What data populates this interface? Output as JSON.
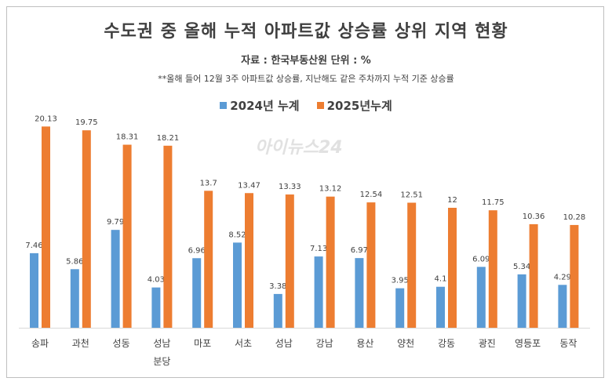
{
  "chart_data": {
    "type": "bar",
    "title": "수도권 중 올해 누적 아파트값 상승률 상위 지역 현황",
    "subtitle": "자료 : 한국부동산원  단위 : %",
    "note": "**올해 들어 12월 3주 아파트값  상승률, 지난해도 같은 주차까지 누적 기준 상승률",
    "categories": [
      "송파",
      "과천",
      "성동",
      "성남\n분당",
      "마포",
      "서초",
      "성남",
      "강남",
      "용산",
      "양천",
      "강동",
      "광진",
      "영등포",
      "동작"
    ],
    "series": [
      {
        "name": "2024년 누계",
        "color": "#5B9BD5",
        "values": [
          7.46,
          5.86,
          9.79,
          4.03,
          6.96,
          8.52,
          3.38,
          7.13,
          6.97,
          3.95,
          4.1,
          6.09,
          5.34,
          4.29
        ]
      },
      {
        "name": "2025년누계",
        "color": "#ED7D31",
        "values": [
          20.13,
          19.75,
          18.31,
          18.21,
          13.7,
          13.47,
          13.33,
          13.12,
          12.54,
          12.51,
          12,
          11.75,
          10.36,
          10.28
        ]
      }
    ],
    "legend_position": "top",
    "grid": false,
    "ylim": [
      0,
      20.13
    ]
  },
  "watermark": "아이뉴스24"
}
